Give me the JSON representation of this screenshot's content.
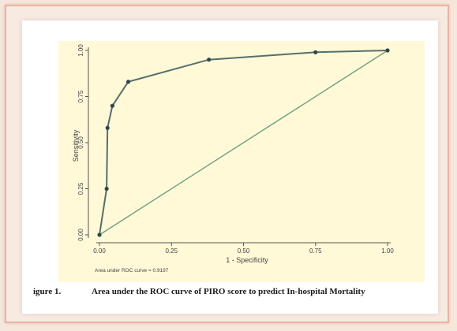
{
  "caption": {
    "label": "igure 1.",
    "text": "Area under the ROC curve of PIRO score to predict In-hospital Mortality"
  },
  "chart_data": {
    "type": "line",
    "xlabel": "1 - Specificity",
    "ylabel": "Sensitivity",
    "xlim": [
      0,
      1
    ],
    "ylim": [
      0,
      1
    ],
    "x_ticks": [
      "0.00",
      "0.25",
      "0.50",
      "0.75",
      "1.00"
    ],
    "y_ticks": [
      "0.00",
      "0.25",
      "0.50",
      "0.75",
      "1.00"
    ],
    "grid": false,
    "annotation": "Area under ROC curve = 0.9197",
    "series": [
      {
        "points": [
          [
            0.0,
            0.0
          ],
          [
            0.025,
            0.25
          ],
          [
            0.028,
            0.58
          ],
          [
            0.045,
            0.7
          ],
          [
            0.1,
            0.83
          ],
          [
            0.38,
            0.95
          ],
          [
            0.75,
            0.99
          ],
          [
            1.0,
            1.0
          ]
        ]
      }
    ],
    "reference_line": [
      [
        0,
        0
      ],
      [
        1,
        1
      ]
    ],
    "colors": {
      "background": "#fff9d8",
      "curve": "#556f6c",
      "reference": "#6fa07f",
      "axis": "#555555"
    }
  }
}
